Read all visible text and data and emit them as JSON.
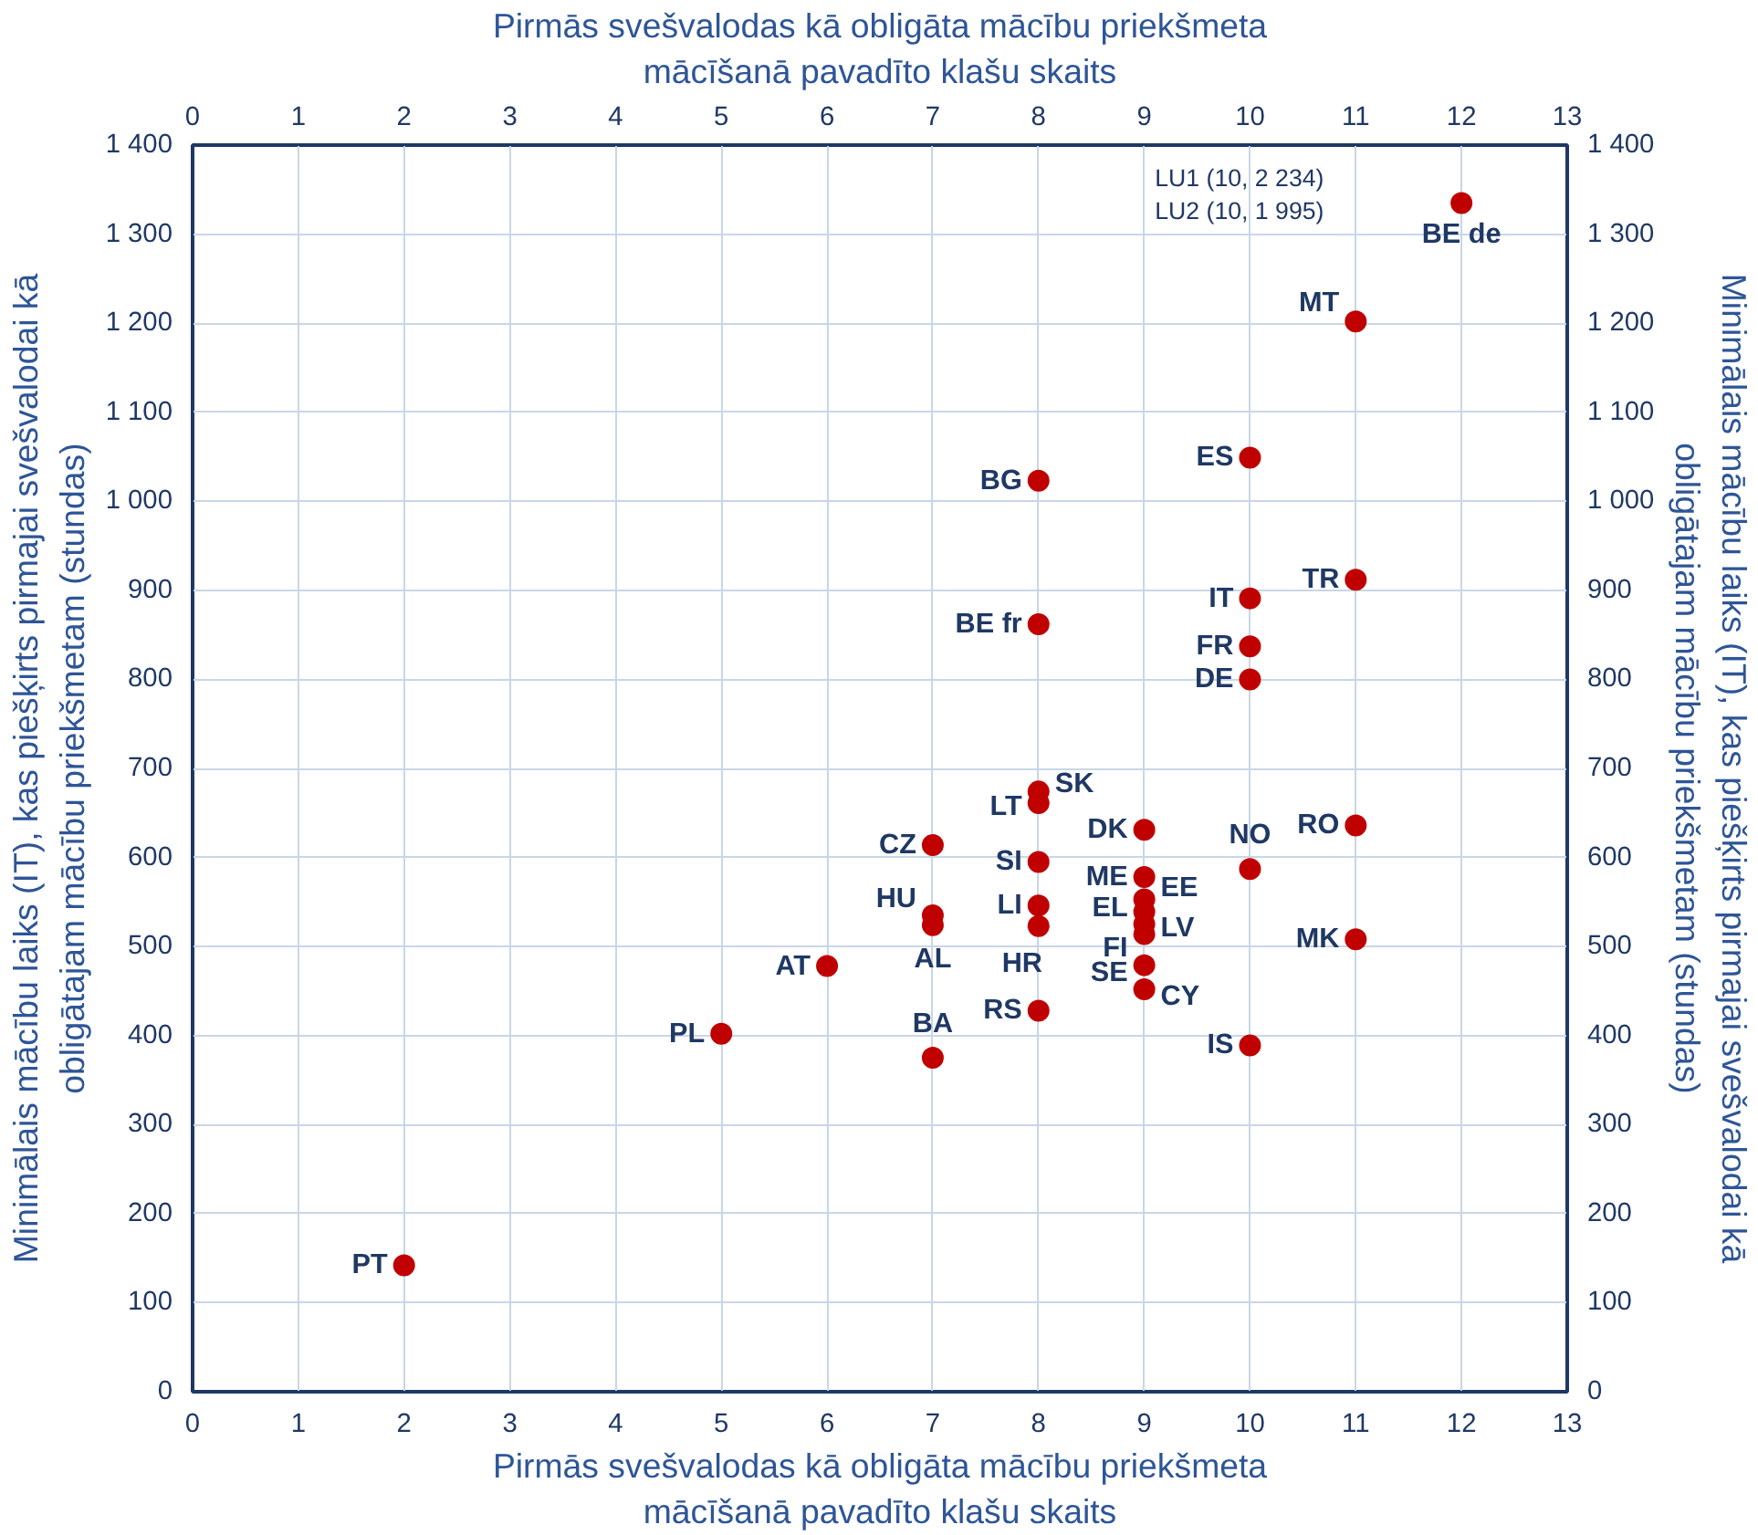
{
  "chart_data": {
    "type": "scatter",
    "xlabel": "Pirmās svešvalodas kā obligāta mācību priekšmeta\nmācīšanā pavadīto klašu skaits",
    "x2label": "Pirmās svešvalodas kā obligāta mācību priekšmeta\nmācīšanā pavadīto klašu skaits",
    "ylabel": "Minimālais mācību laiks (IT), kas piešķirts pirmajai svešvalodai kā\nobligātajam mācību priekšmetam (stundas)",
    "y2label": "Minimālais mācību laiks (IT), kas piešķirts pirmajai svešvalodai kā\nobligātajam mācību priekšmetam (stundas)",
    "xlim": [
      0,
      13
    ],
    "xticks": [
      0,
      1,
      2,
      3,
      4,
      5,
      6,
      7,
      8,
      9,
      10,
      11,
      12,
      13
    ],
    "x2lim": [
      0,
      13
    ],
    "x2ticks": [
      0,
      1,
      2,
      3,
      4,
      5,
      6,
      7,
      8,
      9,
      10,
      11,
      12,
      13
    ],
    "ylim": [
      0,
      1400
    ],
    "yticks": [
      0,
      100,
      200,
      300,
      400,
      500,
      600,
      700,
      800,
      900,
      {
        "value": 1000,
        "label": "1 000"
      },
      {
        "value": 1100,
        "label": "1 100"
      },
      {
        "value": 1200,
        "label": "1 200"
      },
      {
        "value": 1300,
        "label": "1 300"
      },
      {
        "value": 1400,
        "label": "1 400"
      }
    ],
    "y2lim": [
      0,
      1400
    ],
    "y2ticks": [
      0,
      100,
      200,
      300,
      400,
      500,
      600,
      700,
      800,
      900,
      {
        "value": 1000,
        "label": "1 000"
      },
      {
        "value": 1100,
        "label": "1 100"
      },
      {
        "value": 1200,
        "label": "1 200"
      },
      {
        "value": 1300,
        "label": "1 300"
      },
      {
        "value": 1400,
        "label": "1 400"
      }
    ],
    "grid": true,
    "marker": "circle",
    "series": [
      {
        "color": "#c00000",
        "x": [
          2,
          5,
          6,
          7,
          7,
          7,
          7,
          8,
          8,
          8,
          8,
          8,
          8,
          8,
          8,
          9,
          9,
          9,
          9,
          9,
          9,
          9,
          9,
          10,
          10,
          10,
          10,
          10,
          10,
          11,
          11,
          11,
          11,
          12
        ],
        "values": [
          142,
          402,
          478,
          375,
          614,
          535,
          524,
          1023,
          862,
          661,
          674,
          595,
          546,
          523,
          428,
          631,
          578,
          553,
          539,
          525,
          514,
          479,
          452,
          1049,
          891,
          837,
          800,
          587,
          389,
          1202,
          912,
          636,
          508,
          1335
        ]
      }
    ],
    "annotations": [
      {
        "text": "PT",
        "x": 2,
        "y": 142
      },
      {
        "text": "PL",
        "x": 5,
        "y": 402
      },
      {
        "text": "AT",
        "x": 6,
        "y": 478
      },
      {
        "text": "BA",
        "x": 7,
        "y": 375
      },
      {
        "text": "CZ",
        "x": 7,
        "y": 614
      },
      {
        "text": "HU",
        "x": 7,
        "y": 535
      },
      {
        "text": "AL",
        "x": 7,
        "y": 524
      },
      {
        "text": "BG",
        "x": 8,
        "y": 1023
      },
      {
        "text": "BE fr",
        "x": 8,
        "y": 862
      },
      {
        "text": "LT",
        "x": 8,
        "y": 661
      },
      {
        "text": "SK",
        "x": 8,
        "y": 674
      },
      {
        "text": "SI",
        "x": 8,
        "y": 595
      },
      {
        "text": "LI",
        "x": 8,
        "y": 546
      },
      {
        "text": "HR",
        "x": 8,
        "y": 523
      },
      {
        "text": "RS",
        "x": 8,
        "y": 428
      },
      {
        "text": "DK",
        "x": 9,
        "y": 631
      },
      {
        "text": "ME",
        "x": 9,
        "y": 578
      },
      {
        "text": "EE",
        "x": 9,
        "y": 553
      },
      {
        "text": "EL",
        "x": 9,
        "y": 539
      },
      {
        "text": "LV",
        "x": 9,
        "y": 525
      },
      {
        "text": "FI",
        "x": 9,
        "y": 514
      },
      {
        "text": "SE",
        "x": 9,
        "y": 479
      },
      {
        "text": "CY",
        "x": 9,
        "y": 452
      },
      {
        "text": "ES",
        "x": 10,
        "y": 1049
      },
      {
        "text": "IT",
        "x": 10,
        "y": 891
      },
      {
        "text": "FR",
        "x": 10,
        "y": 837
      },
      {
        "text": "DE",
        "x": 10,
        "y": 800
      },
      {
        "text": "NO",
        "x": 10,
        "y": 587
      },
      {
        "text": "IS",
        "x": 10,
        "y": 389
      },
      {
        "text": "MT",
        "x": 11,
        "y": 1202
      },
      {
        "text": "TR",
        "x": 11,
        "y": 912
      },
      {
        "text": "RO",
        "x": 11,
        "y": 636
      },
      {
        "text": "MK",
        "x": 11,
        "y": 508
      },
      {
        "text": "BE de",
        "x": 12,
        "y": 1335
      },
      "LU1 (10,  2 234)",
      "LU2 (10,  1 995)"
    ]
  }
}
